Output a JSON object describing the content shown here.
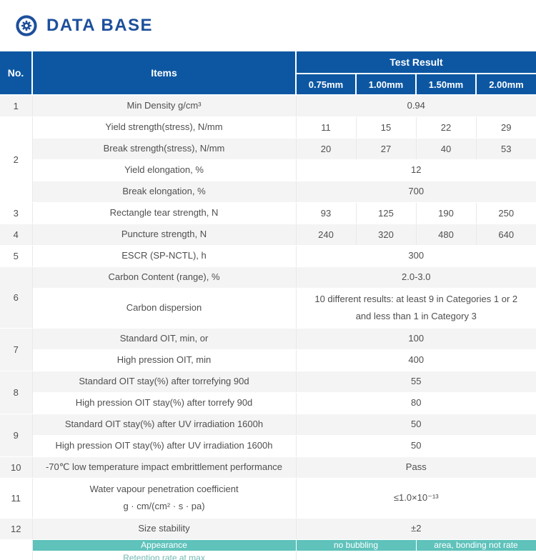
{
  "page_header": {
    "title": "DATA BASE"
  },
  "colors": {
    "primary_blue": "#0d57a2",
    "title_blue": "#1d4f9c",
    "stripe_gray": "#f4f4f4",
    "teal": "#5fc2bb",
    "body_text": "#4f4f4f"
  },
  "table": {
    "headers": {
      "no": "No.",
      "items": "Items",
      "test_result": "Test Result",
      "sizes": [
        "0.75mm",
        "1.00mm",
        "1.50mm",
        "2.00mm"
      ]
    },
    "rows": [
      {
        "no": "1",
        "no_rowspan": 1,
        "item_lines": [
          "Min Density g/cm³"
        ],
        "value_lines": [
          "0.94"
        ]
      },
      {
        "no": "2",
        "no_rowspan": 4,
        "item_lines": [
          "Yield strength(stress), N/mm"
        ],
        "values": [
          "11",
          "15",
          "22",
          "29"
        ]
      },
      {
        "item_lines": [
          "Break strength(stress), N/mm"
        ],
        "values": [
          "20",
          "27",
          "40",
          "53"
        ]
      },
      {
        "item_lines": [
          "Yield elongation, %"
        ],
        "value_lines": [
          "12"
        ]
      },
      {
        "item_lines": [
          "Break elongation, %"
        ],
        "value_lines": [
          "700"
        ]
      },
      {
        "no": "3",
        "no_rowspan": 1,
        "item_lines": [
          "Rectangle tear strength, N"
        ],
        "values": [
          "93",
          "125",
          "190",
          "250"
        ]
      },
      {
        "no": "4",
        "no_rowspan": 1,
        "item_lines": [
          "Puncture strength, N"
        ],
        "values": [
          "240",
          "320",
          "480",
          "640"
        ]
      },
      {
        "no": "5",
        "no_rowspan": 1,
        "item_lines": [
          "ESCR (SP-NCTL), h"
        ],
        "value_lines": [
          "300"
        ]
      },
      {
        "no": "6",
        "no_rowspan": 2,
        "item_lines": [
          "Carbon Content (range), %"
        ],
        "value_lines": [
          "2.0-3.0"
        ]
      },
      {
        "item_lines": [
          "Carbon dispersion"
        ],
        "value_lines": [
          "10 different results: at least 9 in Categories 1 or 2",
          "and less than 1 in Category 3"
        ]
      },
      {
        "no": "7",
        "no_rowspan": 2,
        "item_lines": [
          "Standard OIT, min, or"
        ],
        "value_lines": [
          "100"
        ]
      },
      {
        "item_lines": [
          "High pression OIT, min"
        ],
        "value_lines": [
          "400"
        ]
      },
      {
        "no": "8",
        "no_rowspan": 2,
        "item_lines": [
          "Standard OIT stay(%) after torrefying 90d"
        ],
        "value_lines": [
          "55"
        ]
      },
      {
        "item_lines": [
          "High pression OIT stay(%) after torrefy 90d"
        ],
        "value_lines": [
          "80"
        ]
      },
      {
        "no": "9",
        "no_rowspan": 2,
        "item_lines": [
          "Standard OIT stay(%) after UV irradiation 1600h"
        ],
        "value_lines": [
          "50"
        ]
      },
      {
        "item_lines": [
          "High pression OIT stay(%) after UV irradiation 1600h"
        ],
        "value_lines": [
          "50"
        ]
      },
      {
        "no": "10",
        "no_rowspan": 1,
        "item_lines": [
          "-70℃ low temperature impact embrittlement performance"
        ],
        "value_lines": [
          "Pass"
        ]
      },
      {
        "no": "11",
        "no_rowspan": 1,
        "item_lines": [
          "Water vapour penetration coefficient",
          "g · cm/(cm² · s · pa)"
        ],
        "value_lines": [
          "≤1.0×10⁻¹³"
        ]
      },
      {
        "no": "12",
        "no_rowspan": 1,
        "item_lines": [
          "Size stability"
        ],
        "value_lines": [
          "±2"
        ]
      }
    ]
  },
  "footer_partial": {
    "appearance": "Appearance",
    "no_bubbling": "no bubbling",
    "area_bonding": "area, bonding not rate",
    "retention": "Retention rate at max"
  }
}
